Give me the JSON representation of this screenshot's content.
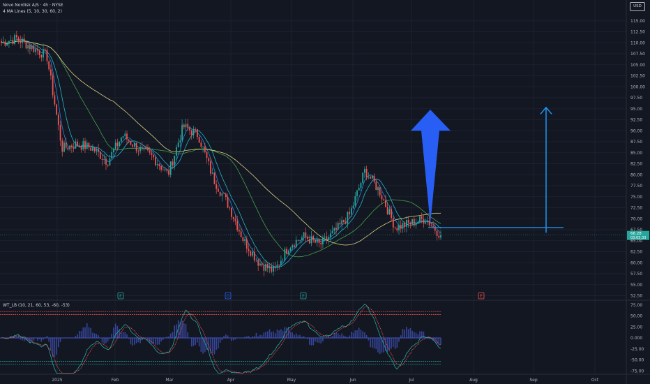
{
  "header": {
    "symbol_line": "Novo Nordisk A/S · 4h · NYSE",
    "indicator_line": "4 MA Lines (5, 10, 30, 60, 2)",
    "currency": "USD"
  },
  "price_axis": {
    "ticks": [
      "115.00",
      "112.50",
      "110.00",
      "107.50",
      "105.00",
      "102.50",
      "100.00",
      "97.50",
      "95.00",
      "92.50",
      "90.00",
      "87.50",
      "85.00",
      "82.50",
      "80.00",
      "77.50",
      "75.00",
      "72.50",
      "70.00",
      "67.50",
      "65.00",
      "62.50",
      "60.00",
      "57.50",
      "55.00",
      "52.50"
    ],
    "last_price_label": "66.28",
    "countdown_label": "03:05:33"
  },
  "time_axis": {
    "ticks": [
      "2025",
      "Feb",
      "Mar",
      "Apr",
      "May",
      "Jun",
      "Jul",
      "Aug",
      "Sep",
      "Oct"
    ]
  },
  "markers": [
    {
      "letter": "E",
      "month_pos": "Feb",
      "color": "#26a69a"
    },
    {
      "letter": "D",
      "month_pos": "Apr",
      "color": "#2962ff"
    },
    {
      "letter": "E",
      "month_pos": "May",
      "color": "#26a69a"
    },
    {
      "letter": "E",
      "month_pos": "Aug",
      "color": "#ef5350"
    }
  ],
  "wt_panel": {
    "title": "WT_LB (10, 21, 60, 53, -60, -53)",
    "ticks": [
      "75.00",
      "50.00",
      "25.00",
      "0.000",
      "-25.00",
      "-50.00",
      "-75.00"
    ]
  },
  "colors": {
    "up": "#26a69a",
    "down": "#ef5350",
    "ma5": "#2196f3",
    "ma10": "#26c6da",
    "ma30": "#4caf50",
    "ma60": "#f0e68c",
    "arrow": "#2962ff",
    "target_line": "#2196f3",
    "background": "#131722"
  },
  "chart_data": {
    "type": "candlestick",
    "title": "Novo Nordisk A/S · 4h · NYSE",
    "ylim": [
      51,
      117
    ],
    "x_labels": [
      "2025",
      "Feb",
      "Mar",
      "Apr",
      "May",
      "Jun",
      "Jul",
      "Aug",
      "Sep",
      "Oct"
    ],
    "price_path": [
      {
        "date": "Dec",
        "close": 110
      },
      {
        "date": "Dec",
        "close": 111
      },
      {
        "date": "Dec",
        "close": 109
      },
      {
        "date": "Jan",
        "close": 107
      },
      {
        "date": "Jan",
        "close": 86
      },
      {
        "date": "Jan",
        "close": 87
      },
      {
        "date": "Jan",
        "close": 86
      },
      {
        "date": "Jan",
        "close": 83
      },
      {
        "date": "Feb",
        "close": 89
      },
      {
        "date": "Feb",
        "close": 86
      },
      {
        "date": "Feb",
        "close": 84
      },
      {
        "date": "Feb",
        "close": 80
      },
      {
        "date": "Mar",
        "close": 91
      },
      {
        "date": "Mar",
        "close": 89
      },
      {
        "date": "Mar",
        "close": 79
      },
      {
        "date": "Mar",
        "close": 73
      },
      {
        "date": "Apr",
        "close": 65
      },
      {
        "date": "Apr",
        "close": 60
      },
      {
        "date": "Apr",
        "close": 58
      },
      {
        "date": "Apr",
        "close": 64
      },
      {
        "date": "May",
        "close": 66
      },
      {
        "date": "May",
        "close": 64
      },
      {
        "date": "May",
        "close": 67
      },
      {
        "date": "Jun",
        "close": 71
      },
      {
        "date": "Jun",
        "close": 81
      },
      {
        "date": "Jun",
        "close": 76
      },
      {
        "date": "Jun",
        "close": 68
      },
      {
        "date": "Jul",
        "close": 69
      },
      {
        "date": "Jul",
        "close": 70
      },
      {
        "date": "Jul",
        "close": 66.28
      }
    ],
    "last_price": 66.28,
    "target_level": 68,
    "moving_averages": [
      "MA 5",
      "MA 10",
      "MA 30",
      "MA 60"
    ],
    "oscillator": {
      "name": "WT_LB",
      "ylim": [
        -85,
        85
      ],
      "overbought": [
        60,
        53
      ],
      "oversold": [
        -60,
        -53
      ]
    }
  }
}
